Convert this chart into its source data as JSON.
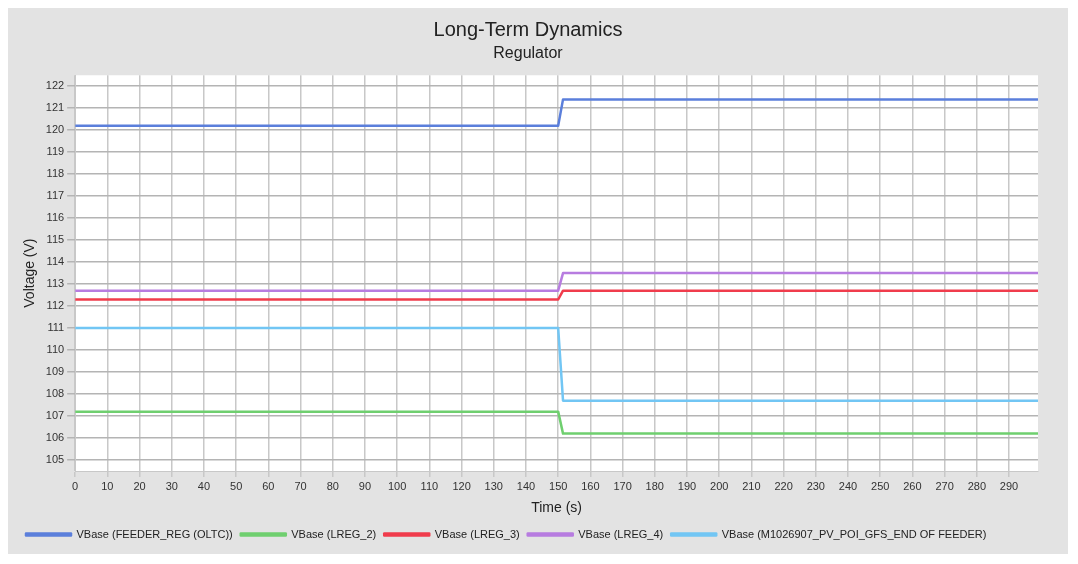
{
  "chart_data": {
    "type": "line",
    "title": "Long-Term Dynamics",
    "subtitle": "Regulator",
    "xlabel": "Time (s)",
    "ylabel": "Voltage (V)",
    "xlim": [
      0,
      299
    ],
    "xticks": [
      0,
      10,
      20,
      30,
      40,
      50,
      60,
      70,
      80,
      90,
      100,
      110,
      120,
      130,
      140,
      150,
      160,
      170,
      180,
      190,
      200,
      210,
      220,
      230,
      240,
      250,
      260,
      270,
      280,
      290
    ],
    "ylim": [
      104.5,
      122.5
    ],
    "yticks": [
      105,
      106,
      107,
      108,
      109,
      110,
      111,
      112,
      113,
      114,
      115,
      116,
      117,
      118,
      119,
      120,
      121,
      122
    ],
    "grid": true,
    "legend": "bottom",
    "marker": "none",
    "line_style": "solid",
    "series": [
      {
        "name": "VBase (FEEDER_REG (OLTC))",
        "color": "#5b7fdb",
        "x": [
          0,
          150,
          151.5,
          299
        ],
        "values": [
          120.2,
          120.2,
          121.4,
          121.4
        ]
      },
      {
        "name": "VBase (LREG_2)",
        "color": "#6fcf6f",
        "x": [
          0,
          150,
          151.5,
          299
        ],
        "values": [
          107.2,
          107.2,
          106.2,
          106.2
        ]
      },
      {
        "name": "VBase (LREG_3)",
        "color": "#f03c4c",
        "x": [
          0,
          150,
          151.5,
          299
        ],
        "values": [
          112.3,
          112.3,
          112.7,
          112.7
        ]
      },
      {
        "name": "VBase (LREG_4)",
        "color": "#b77ce0",
        "x": [
          0,
          150,
          151.5,
          299
        ],
        "values": [
          112.7,
          112.7,
          113.5,
          113.5
        ]
      },
      {
        "name": "VBase (M1026907_PV_POI_GFS_END OF FEEDER)",
        "color": "#72c6f4",
        "x": [
          0,
          150,
          151.5,
          299
        ],
        "values": [
          111.0,
          111.0,
          107.7,
          107.7
        ]
      }
    ]
  }
}
